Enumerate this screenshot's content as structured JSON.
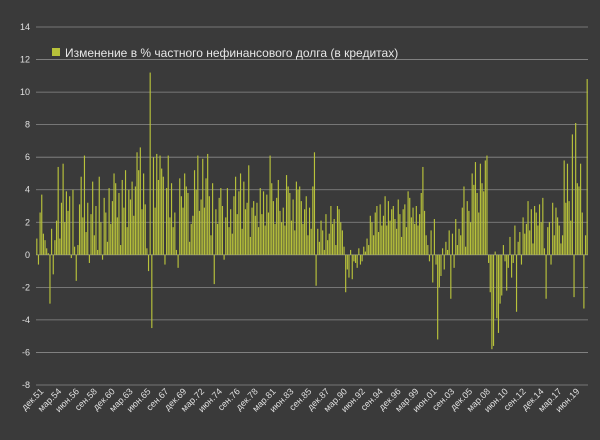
{
  "chart_data": {
    "type": "bar",
    "title": "",
    "xlabel": "",
    "ylabel": "",
    "legend_position": "top-left",
    "grid": true,
    "ylim": [
      -8,
      14
    ],
    "y_ticks": [
      -8,
      -6,
      -4,
      -2,
      0,
      2,
      4,
      6,
      8,
      10,
      12,
      14
    ],
    "x_tick_labels": [
      "дек.51",
      "мар.54",
      "июн.56",
      "сен.58",
      "дек.60",
      "мар.63",
      "июн.65",
      "сен.67",
      "дек.69",
      "мар.72",
      "июн.74",
      "сен.76",
      "дек.78",
      "мар.81",
      "июн.83",
      "сен.85",
      "дек.87",
      "мар.90",
      "июн.92",
      "сен.94",
      "дек.96",
      "мар.99",
      "июн.01",
      "сен.03",
      "дек.05",
      "мар.08",
      "июн.10",
      "сен.12",
      "дек.14",
      "мар.17",
      "июн.19"
    ],
    "colors": {
      "background": "#3a3a3a",
      "bar": "#b8c23a",
      "grid": "#8a8a8a",
      "text": "#e0e0e0"
    },
    "series": [
      {
        "name": "Изменение в % частного нефинансового долга (в кредитах)",
        "start": "дек.51",
        "frequency": "quarterly",
        "values": [
          1.0,
          -0.6,
          2.6,
          3.7,
          1.3,
          0.9,
          0.4,
          0.1,
          -3.0,
          1.6,
          -1.2,
          0.9,
          2.1,
          5.4,
          1.0,
          3.2,
          5.6,
          2.0,
          3.9,
          2.7,
          3.6,
          -0.2,
          4.0,
          0.5,
          -1.6,
          0.6,
          3.1,
          4.8,
          2.3,
          6.1,
          1.4,
          3.2,
          -0.5,
          2.5,
          4.5,
          1.2,
          3.0,
          0.3,
          4.8,
          2.0,
          -0.3,
          3.5,
          2.6,
          0.8,
          4.1,
          1.9,
          3.3,
          5.0,
          4.4,
          2.3,
          3.8,
          0.6,
          4.6,
          2.9,
          5.2,
          1.7,
          4.0,
          3.4,
          4.5,
          2.4,
          4.2,
          6.3,
          5.2,
          6.6,
          2.8,
          5.0,
          3.1,
          0.4,
          -1.0,
          11.2,
          -4.5,
          6.0,
          2.9,
          6.2,
          4.6,
          6.1,
          5.3,
          4.8,
          -0.6,
          4.1,
          6.1,
          2.3,
          4.4,
          1.7,
          2.6,
          0.3,
          -0.8,
          4.7,
          3.6,
          2.9,
          5.0,
          4.2,
          3.8,
          0.8,
          1.9,
          2.4,
          5.2,
          4.0,
          6.1,
          2.7,
          3.4,
          5.9,
          2.9,
          4.7,
          6.2,
          3.6,
          1.2,
          4.4,
          -1.8,
          2.8,
          1.9,
          3.5,
          4.1,
          3.0,
          -0.3,
          2.3,
          4.1,
          1.7,
          2.8,
          1.3,
          3.6,
          4.8,
          2.5,
          3.9,
          5.0,
          1.6,
          4.5,
          2.8,
          3.2,
          5.5,
          1.1,
          2.9,
          3.3,
          2.4,
          3.2,
          1.7,
          4.1,
          2.5,
          3.9,
          1.8,
          3.7,
          2.6,
          6.1,
          4.4,
          3.3,
          1.9,
          3.5,
          4.6,
          2.7,
          2.0,
          2.9,
          1.8,
          4.9,
          4.2,
          3.8,
          2.1,
          3.4,
          1.5,
          4.5,
          4.0,
          4.2,
          3.3,
          1.9,
          2.8,
          3.6,
          1.2,
          2.9,
          1.6,
          4.2,
          6.3,
          -1.9,
          1.6,
          0.8,
          2.1,
          1.5,
          0.3,
          2.5,
          0.9,
          1.3,
          3.0,
          1.9,
          2.2,
          0.6,
          3.0,
          2.8,
          2.0,
          1.5,
          0.5,
          -2.3,
          -0.9,
          -1.4,
          0.3,
          -1.5,
          -0.4,
          -0.5,
          -0.8,
          0.4,
          -0.6,
          -0.4,
          0.5,
          0.2,
          1.0,
          0.6,
          2.4,
          2.0,
          1.2,
          2.6,
          3.0,
          1.4,
          3.1,
          1.8,
          2.4,
          3.6,
          1.8,
          3.3,
          2.1,
          2.8,
          3.0,
          2.2,
          1.6,
          3.4,
          2.5,
          1.1,
          2.8,
          3.1,
          1.7,
          3.9,
          3.5,
          2.3,
          2.9,
          1.9,
          3.0,
          1.8,
          2.5,
          3.8,
          5.4,
          2.7,
          1.2,
          0.6,
          -0.4,
          1.5,
          -1.7,
          2.2,
          -0.6,
          -5.2,
          -2.0,
          -1.3,
          0.4,
          -0.9,
          0.8,
          0.3,
          1.5,
          -2.7,
          1.3,
          -0.8,
          2.2,
          0.6,
          1.6,
          1.2,
          2.9,
          4.2,
          0.5,
          3.3,
          2.7,
          2.0,
          5.0,
          4.3,
          5.7,
          3.8,
          2.6,
          5.6,
          4.4,
          3.9,
          5.8,
          6.1,
          -0.5,
          -2.3,
          -5.8,
          -5.6,
          0.2,
          -3.9,
          -4.8,
          -3.0,
          -2.5,
          0.6,
          -0.4,
          -2.2,
          -0.8,
          1.1,
          -1.4,
          -0.5,
          1.8,
          -3.5,
          0.8,
          1.4,
          -0.6,
          2.3,
          1.3,
          1.9,
          3.3,
          1.5,
          2.8,
          0.7,
          3.0,
          2.6,
          1.8,
          3.1,
          2.0,
          3.5,
          0.4,
          -2.7,
          1.7,
          2.0,
          -0.6,
          3.2,
          1.2,
          2.9,
          2.3,
          1.8,
          0.7,
          1.2,
          5.8,
          3.2,
          5.6,
          3.3,
          2.1,
          7.4,
          -2.6,
          8.1,
          4.4,
          4.2,
          5.6,
          2.6,
          -3.3,
          1.2,
          10.8
        ]
      }
    ]
  }
}
